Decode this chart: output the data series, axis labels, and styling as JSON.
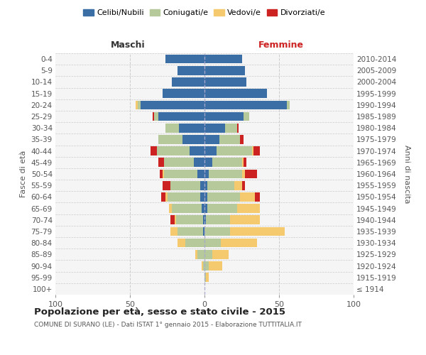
{
  "age_groups": [
    "100+",
    "95-99",
    "90-94",
    "85-89",
    "80-84",
    "75-79",
    "70-74",
    "65-69",
    "60-64",
    "55-59",
    "50-54",
    "45-49",
    "40-44",
    "35-39",
    "30-34",
    "25-29",
    "20-24",
    "15-19",
    "10-14",
    "5-9",
    "0-4"
  ],
  "birth_years": [
    "≤ 1914",
    "1915-1919",
    "1920-1924",
    "1925-1929",
    "1930-1934",
    "1935-1939",
    "1940-1944",
    "1945-1949",
    "1950-1954",
    "1955-1959",
    "1960-1964",
    "1965-1969",
    "1970-1974",
    "1975-1979",
    "1980-1984",
    "1985-1989",
    "1990-1994",
    "1995-1999",
    "2000-2004",
    "2005-2009",
    "2010-2014"
  ],
  "males": {
    "celibi": [
      0,
      0,
      0,
      0,
      0,
      1,
      1,
      2,
      3,
      3,
      5,
      7,
      10,
      15,
      17,
      31,
      43,
      28,
      22,
      18,
      26
    ],
    "coniugati": [
      0,
      0,
      1,
      5,
      13,
      17,
      18,
      20,
      22,
      20,
      22,
      20,
      22,
      16,
      9,
      3,
      2,
      0,
      0,
      0,
      0
    ],
    "vedovi": [
      0,
      0,
      1,
      1,
      5,
      5,
      1,
      2,
      1,
      0,
      1,
      0,
      0,
      0,
      0,
      0,
      1,
      0,
      0,
      0,
      0
    ],
    "divorziati": [
      0,
      0,
      0,
      0,
      0,
      0,
      3,
      0,
      3,
      5,
      2,
      4,
      4,
      0,
      0,
      1,
      0,
      0,
      0,
      0,
      0
    ]
  },
  "females": {
    "nubili": [
      0,
      0,
      0,
      0,
      0,
      0,
      1,
      2,
      2,
      2,
      3,
      5,
      8,
      10,
      14,
      26,
      55,
      42,
      28,
      27,
      25
    ],
    "coniugate": [
      0,
      1,
      3,
      5,
      11,
      17,
      16,
      20,
      22,
      18,
      22,
      20,
      24,
      14,
      8,
      4,
      2,
      0,
      0,
      0,
      0
    ],
    "vedove": [
      0,
      2,
      9,
      11,
      24,
      37,
      20,
      15,
      10,
      5,
      2,
      1,
      1,
      0,
      0,
      0,
      0,
      0,
      0,
      0,
      0
    ],
    "divorziate": [
      0,
      0,
      0,
      0,
      0,
      0,
      0,
      0,
      3,
      2,
      8,
      2,
      4,
      2,
      1,
      0,
      0,
      0,
      0,
      0,
      0
    ]
  },
  "colors": {
    "celibi": "#3a6ea5",
    "coniugati": "#b5c99a",
    "vedovi": "#f5c96e",
    "divorziati": "#cc2222"
  },
  "xlim": 100,
  "xticks": [
    -100,
    -50,
    0,
    50,
    100
  ],
  "title": "Popolazione per età, sesso e stato civile - 2015",
  "subtitle": "COMUNE DI SURANO (LE) - Dati ISTAT 1° gennaio 2015 - Elaborazione TUTTITALIA.IT",
  "ylabel_left": "Fasce di età",
  "ylabel_right": "Anni di nascita",
  "xlabel_left": "Maschi",
  "xlabel_right": "Femmine",
  "legend_labels": [
    "Celibi/Nubili",
    "Coniugati/e",
    "Vedovi/e",
    "Divorziati/e"
  ],
  "bg_color": "#f5f5f5",
  "grid_color": "#cccccc",
  "bar_height": 0.78
}
